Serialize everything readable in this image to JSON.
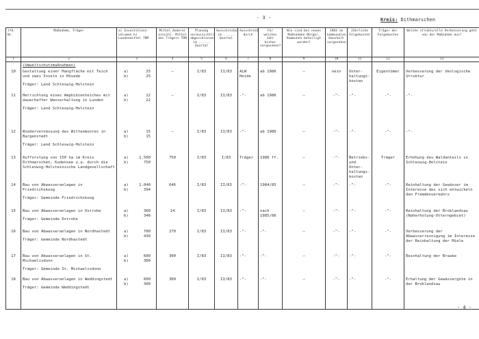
{
  "page_number": "- 3 -",
  "kreis_label": "Kreis:",
  "kreis_value": "Dithmarschen",
  "next_page": "- 4 -",
  "headers": [
    "lfd. Nr.",
    "Maßnahme, Träger",
    "a) Investitions-volumen b) Landesmittel TDM",
    "Mittel Anderer einschl. Mittel des Trägers TDM",
    "Planung voraussichtlich abgeschlossen im ...... Quartal",
    "Ausschreibung im ...... Quartal",
    "Ausschreibung durch",
    "Für welches Jahr bisher vorgesehen?",
    "Wie sind bei neuen Maßnahmen Bürger, Kommunen beteiligt worden?",
    "1983 im kommunalen Haushalt vorgesehen",
    "Jährliche Folgekosten",
    "Träger der Folgekosten",
    "Welche strukturelle Verbesserung geht von der Maßnahme aus?"
  ],
  "column_numbers": [
    "1",
    "2",
    "3",
    "4",
    "5",
    "6",
    "7",
    "8",
    "9",
    "10",
    "11",
    "12",
    "13"
  ],
  "section_title": "(Umweltschutzmaßnahmen)",
  "rows": [
    {
      "nr": "10",
      "massnahme": "Gestaltung einer Hangfläche mit Teich und zwei Inseln in Hövede",
      "traeger": "Träger: Land Schleswig-Holstein",
      "a": "25",
      "b": "25",
      "c4": "–",
      "c5": "I/83",
      "c6": "II/83",
      "c7": "ALW Heide",
      "c8": "ab 1986",
      "c9": "–",
      "c10": "nein",
      "c11": "Unter-haltungs-kosten",
      "c12": "Eigentümer",
      "c13": "Verbesserung der ökologische Struktur"
    },
    {
      "nr": "11",
      "massnahme": "Herrichtung eines Amphibienteiches mit dauerhafter Wasserhaltung in Lunden",
      "traeger": "Träger: Land Schleswig-Holstein",
      "a": "22",
      "b": "22",
      "c4": "–",
      "c5": "I/83",
      "c6": "II/83",
      "c7": "-\"-",
      "c8": "ab 1986",
      "c9": "–",
      "c10": "-\"-",
      "c11": "-\"-",
      "c12": "-\"-",
      "c13": "-\"-"
    },
    {
      "nr": "12",
      "massnahme": "Wiedervernässung des Wittenmoores in Bargenstedt",
      "traeger": "Träger: Land Schleswig-Holstein",
      "a": "15",
      "b": "15",
      "c4": "–",
      "c5": "I/83",
      "c6": "II/83",
      "c7": "-\"-",
      "c8": "ab 1986",
      "c9": "–",
      "c10": "-\"-",
      "c11": "-\"-",
      "c12": "-\"-",
      "c13": "-\"-"
    },
    {
      "nr": "13",
      "massnahme": "Aufforstung von 150 ha im Kreis Dithmarschen, Kudensee u.a. durch die Schleswig-Holsteinische Landgesellschaft",
      "traeger": "",
      "a": "1.500",
      "b": "750",
      "c4": "750",
      "c5": "I/83",
      "c6": "I/83",
      "c7": "Träger",
      "c8": "1986 ff.",
      "c9": "–",
      "c10": "-\"-",
      "c11": "Betriebs- und Unter-haltungs-kosten",
      "c12": "Träger",
      "c13": "Erhöhung des Waldanteils in Schleswig-Holstein"
    },
    {
      "nr": "14",
      "massnahme": "Bau von Abwasseranlagen in Friedrichskoog",
      "traeger": "Träger: Gemeinde Friedrichskoog",
      "a": "1.040",
      "b": "394",
      "c4": "646",
      "c5": "I/83",
      "c6": "II/83",
      "c7": "-\"-",
      "c8": "1984/85",
      "c9": "–",
      "c10": "-\"-",
      "c11": "-\"-",
      "c12": "-\"-",
      "c13": "Reinhaltung der Gewässer im Interesse des sich entwickeln den Fremdenverkehrs"
    },
    {
      "nr": "15",
      "massnahme": "Bau von Abwasseranlagen in Ostrohe",
      "traeger": "Träger: Gemeinde Ostrohe",
      "a": "360",
      "b": "346",
      "c4": "14",
      "c5": "I/83",
      "c6": "II/83",
      "c7": "-\"-",
      "c8": "nach 1985/86",
      "c9": "–",
      "c10": "-\"-",
      "c11": "-\"-",
      "c12": "-\"-",
      "c13": "Reinhaltung der Broklandsau (Naherholung-Otterngebiet)"
    },
    {
      "nr": "16",
      "massnahme": "Bau von Abwasseranlagen in Nordhastedt",
      "traeger": "Träger: Gemeinde Nordhastedt",
      "a": "700",
      "b": "430",
      "c4": "270",
      "c5": "I/83",
      "c6": "II/83",
      "c7": "-\"-",
      "c8": "-\"-",
      "c9": "–",
      "c10": "-\"-",
      "c11": "-\"-",
      "c12": "-\"-",
      "c13": "Verbesserung der Abwasserreinigung im Interesse der Reinhaltung der Miele"
    },
    {
      "nr": "17",
      "massnahme": "Bau von Abwasseranlagen in St. Michaelisdonn",
      "traeger": "Träger: Gemeinde St. Michaelisdonn",
      "a": "600",
      "b": "300",
      "c4": "300",
      "c5": "I/83",
      "c6": "II/83",
      "c7": "-\"-",
      "c8": "-\"-",
      "c9": "–",
      "c10": "-\"-",
      "c11": "-\"-",
      "c12": "-\"-",
      "c13": "Reinhaltung der Braake"
    },
    {
      "nr": "18",
      "massnahme": "Bau von Abwasseranlagen in Weddingstedt",
      "traeger": "Träger: Gemeinde Weddingstedt",
      "a": "600",
      "b": "300",
      "c4": "300",
      "c5": "I/83",
      "c6": "II/83",
      "c7": "-\"-",
      "c8": "-\"-",
      "c9": "–",
      "c10": "-\"-",
      "c11": "-\"-",
      "c12": "-\"-",
      "c13": "Erhaltung der Gewässergüte in der Broklandsau"
    }
  ],
  "labels": {
    "a": "a)",
    "b": "b)"
  }
}
